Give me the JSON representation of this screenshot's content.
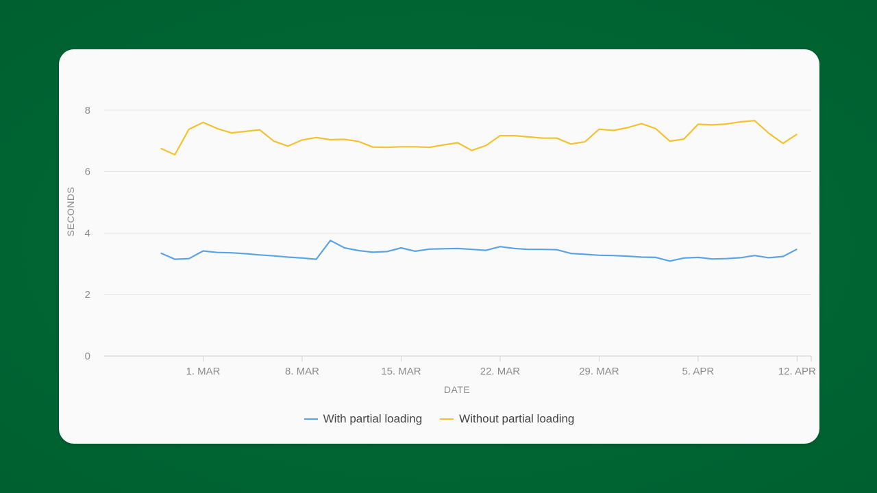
{
  "colors": {
    "background": "#00643a",
    "series_with": "#5aa4e6",
    "series_without": "#f5c12e",
    "grid": "#e3e3e3"
  },
  "chart_data": {
    "type": "line",
    "xlabel": "DATE",
    "ylabel": "SECONDS",
    "ylim": [
      0,
      9
    ],
    "yticks": [
      0,
      2,
      4,
      6,
      8
    ],
    "xlim": [
      "2021-02-22",
      "2021-04-13"
    ],
    "xticks": [
      {
        "date": "2021-03-01",
        "label": "1. MAR"
      },
      {
        "date": "2021-03-08",
        "label": "8. MAR"
      },
      {
        "date": "2021-03-15",
        "label": "15. MAR"
      },
      {
        "date": "2021-03-22",
        "label": "22. MAR"
      },
      {
        "date": "2021-03-29",
        "label": "29. MAR"
      },
      {
        "date": "2021-04-05",
        "label": "5. APR"
      },
      {
        "date": "2021-04-12",
        "label": "12. APR"
      }
    ],
    "grid": true,
    "legend_position": "bottom-center",
    "x": [
      "2021-02-26",
      "2021-02-27",
      "2021-02-28",
      "2021-03-01",
      "2021-03-02",
      "2021-03-03",
      "2021-03-04",
      "2021-03-05",
      "2021-03-06",
      "2021-03-07",
      "2021-03-08",
      "2021-03-09",
      "2021-03-10",
      "2021-03-11",
      "2021-03-12",
      "2021-03-13",
      "2021-03-14",
      "2021-03-15",
      "2021-03-16",
      "2021-03-17",
      "2021-03-18",
      "2021-03-19",
      "2021-03-20",
      "2021-03-21",
      "2021-03-22",
      "2021-03-23",
      "2021-03-24",
      "2021-03-25",
      "2021-03-26",
      "2021-03-27",
      "2021-03-28",
      "2021-03-29",
      "2021-03-30",
      "2021-03-31",
      "2021-04-01",
      "2021-04-02",
      "2021-04-03",
      "2021-04-04",
      "2021-04-05",
      "2021-04-06",
      "2021-04-07",
      "2021-04-08",
      "2021-04-09",
      "2021-04-10",
      "2021-04-11",
      "2021-04-12"
    ],
    "series": [
      {
        "name": "With partial loading",
        "color": "#5aa4e6",
        "values": [
          3.35,
          3.15,
          3.17,
          3.42,
          3.37,
          3.36,
          3.33,
          3.29,
          3.26,
          3.22,
          3.19,
          3.15,
          3.76,
          3.52,
          3.43,
          3.38,
          3.4,
          3.52,
          3.41,
          3.48,
          3.49,
          3.5,
          3.47,
          3.44,
          3.56,
          3.5,
          3.47,
          3.47,
          3.46,
          3.34,
          3.31,
          3.28,
          3.27,
          3.25,
          3.22,
          3.21,
          3.09,
          3.19,
          3.21,
          3.16,
          3.17,
          3.2,
          3.27,
          3.2,
          3.24,
          3.48
        ]
      },
      {
        "name": "Without partial loading",
        "color": "#f5c12e",
        "values": [
          6.76,
          6.55,
          7.38,
          7.6,
          7.4,
          7.26,
          7.31,
          7.36,
          6.99,
          6.83,
          7.03,
          7.11,
          7.04,
          7.05,
          6.98,
          6.8,
          6.79,
          6.81,
          6.81,
          6.79,
          6.87,
          6.94,
          6.69,
          6.85,
          7.17,
          7.17,
          7.13,
          7.09,
          7.09,
          6.9,
          6.97,
          7.38,
          7.34,
          7.43,
          7.56,
          7.4,
          6.99,
          7.06,
          7.54,
          7.52,
          7.55,
          7.62,
          7.66,
          7.25,
          6.92,
          7.22
        ]
      }
    ]
  }
}
